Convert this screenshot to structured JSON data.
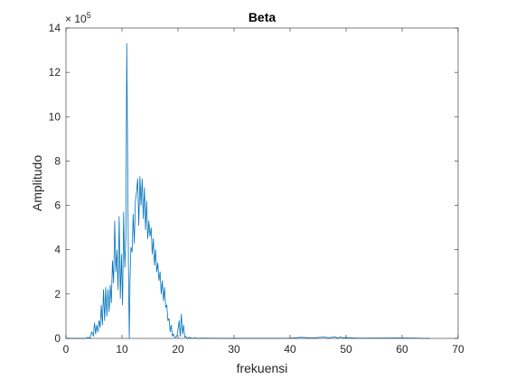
{
  "chart_data": {
    "type": "line",
    "title": "Beta",
    "xlabel": "frekuensi",
    "ylabel": "Amplitudo",
    "exponent_label": "× 10",
    "exponent_power": "5",
    "xlim": [
      0,
      70
    ],
    "ylim": [
      0,
      14
    ],
    "xticks": [
      0,
      10,
      20,
      30,
      40,
      50,
      60,
      70
    ],
    "yticks": [
      0,
      2,
      4,
      6,
      8,
      10,
      12,
      14
    ],
    "y_units_note": "values in units of 10^5",
    "grid": false,
    "line_color": "#0072BD",
    "series": [
      {
        "x": [
          0,
          3.5,
          4.0,
          4.3,
          4.6,
          4.9,
          5.1,
          5.3,
          5.5,
          5.7,
          5.9,
          6.1,
          6.3,
          6.5,
          6.7,
          6.9,
          7.1,
          7.3,
          7.5,
          7.7,
          7.9,
          8.1,
          8.3,
          8.5,
          8.7,
          8.9,
          9.1,
          9.3,
          9.5,
          9.7,
          9.9,
          10.1,
          10.3,
          10.5,
          10.7,
          10.85,
          11.0,
          11.15,
          11.3,
          11.45,
          11.6,
          11.8,
          12.0,
          12.2,
          12.4,
          12.6,
          12.8,
          13.0,
          13.2,
          13.4,
          13.6,
          13.8,
          14.0,
          14.2,
          14.4,
          14.6,
          14.8,
          15.0,
          15.2,
          15.4,
          15.6,
          15.8,
          16.0,
          16.2,
          16.4,
          16.6,
          16.8,
          17.0,
          17.2,
          17.4,
          17.6,
          17.8,
          18.0,
          18.2,
          18.4,
          18.6,
          18.8,
          19.0,
          19.2,
          19.4,
          19.6,
          19.8,
          20.0,
          20.2,
          20.4,
          20.6,
          20.8,
          21.0,
          21.2,
          21.4,
          21.6,
          21.8,
          22.0,
          22.5,
          23.0,
          23.5,
          24.0,
          30.0,
          40.0,
          42.0,
          44.0,
          46.0,
          47.0,
          48.0,
          48.5,
          49.0,
          49.5,
          50.0,
          52.0,
          60.0,
          65.0
        ],
        "y": [
          0,
          0,
          0.05,
          0.0,
          0.3,
          0.1,
          0.7,
          0.2,
          0.6,
          0.3,
          0.8,
          0.5,
          1.5,
          0.6,
          2.2,
          0.8,
          2.3,
          1.0,
          2.2,
          1.2,
          2.4,
          1.6,
          3.5,
          2.5,
          5.3,
          3.0,
          4.0,
          2.2,
          5.5,
          1.8,
          3.8,
          1.5,
          5.7,
          3.2,
          4.6,
          13.3,
          8.5,
          3.4,
          0.0,
          2.8,
          4.1,
          3.9,
          5.6,
          4.3,
          6.2,
          6.6,
          7.2,
          5.1,
          7.3,
          6.0,
          7.2,
          5.4,
          6.8,
          4.9,
          6.2,
          4.5,
          5.3,
          4.6,
          5.0,
          3.8,
          4.5,
          3.3,
          4.0,
          3.0,
          3.4,
          2.6,
          3.0,
          2.0,
          2.6,
          1.7,
          2.3,
          1.4,
          1.5,
          0.8,
          0.9,
          0.3,
          0.6,
          0.1,
          0.2,
          0.05,
          0.05,
          0.1,
          0.4,
          0.8,
          0.1,
          1.1,
          0.2,
          0.6,
          0.05,
          0.1,
          0.0,
          0.02,
          0.05,
          0.0,
          0.02,
          0.0,
          0.01,
          0.0,
          0.01,
          0.05,
          0.02,
          0.06,
          0.03,
          0.07,
          0.02,
          0.06,
          0.03,
          0.04,
          0.01,
          0.02,
          0.0
        ]
      }
    ]
  }
}
